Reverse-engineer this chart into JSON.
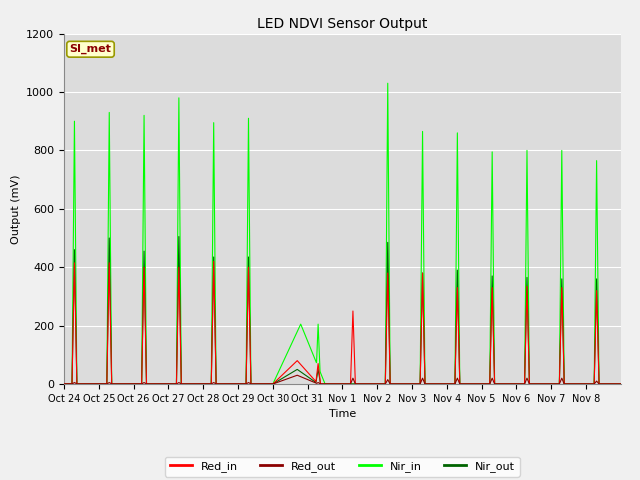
{
  "title": "LED NDVI Sensor Output",
  "xlabel": "Time",
  "ylabel": "Output (mV)",
  "ylim": [
    0,
    1200
  ],
  "legend_label": "SI_met",
  "colors": {
    "Red_in": "#ff0000",
    "Red_out": "#8b0000",
    "Nir_in": "#00ff00",
    "Nir_out": "#006400"
  },
  "x_tick_labels": [
    "Oct 24",
    "Oct 25",
    "Oct 26",
    "Oct 27",
    "Oct 28",
    "Oct 29",
    "Oct 30",
    "Oct 31",
    "Nov 1",
    "Nov 2",
    "Nov 3",
    "Nov 4",
    "Nov 5",
    "Nov 6",
    "Nov 7",
    "Nov 8"
  ],
  "Red_in_peaks": [
    415,
    415,
    400,
    400,
    420,
    400,
    0,
    70,
    250,
    380,
    380,
    330,
    330,
    335,
    330,
    320
  ],
  "Red_out_peaks": [
    5,
    5,
    5,
    5,
    5,
    5,
    0,
    5,
    20,
    15,
    20,
    20,
    20,
    20,
    20,
    10
  ],
  "Nir_in_peaks": [
    900,
    930,
    920,
    980,
    895,
    910,
    0,
    205,
    0,
    1030,
    865,
    860,
    795,
    800,
    800,
    765
  ],
  "Nir_out_peaks": [
    460,
    500,
    455,
    505,
    435,
    435,
    0,
    50,
    0,
    485,
    380,
    390,
    370,
    365,
    360,
    360
  ]
}
